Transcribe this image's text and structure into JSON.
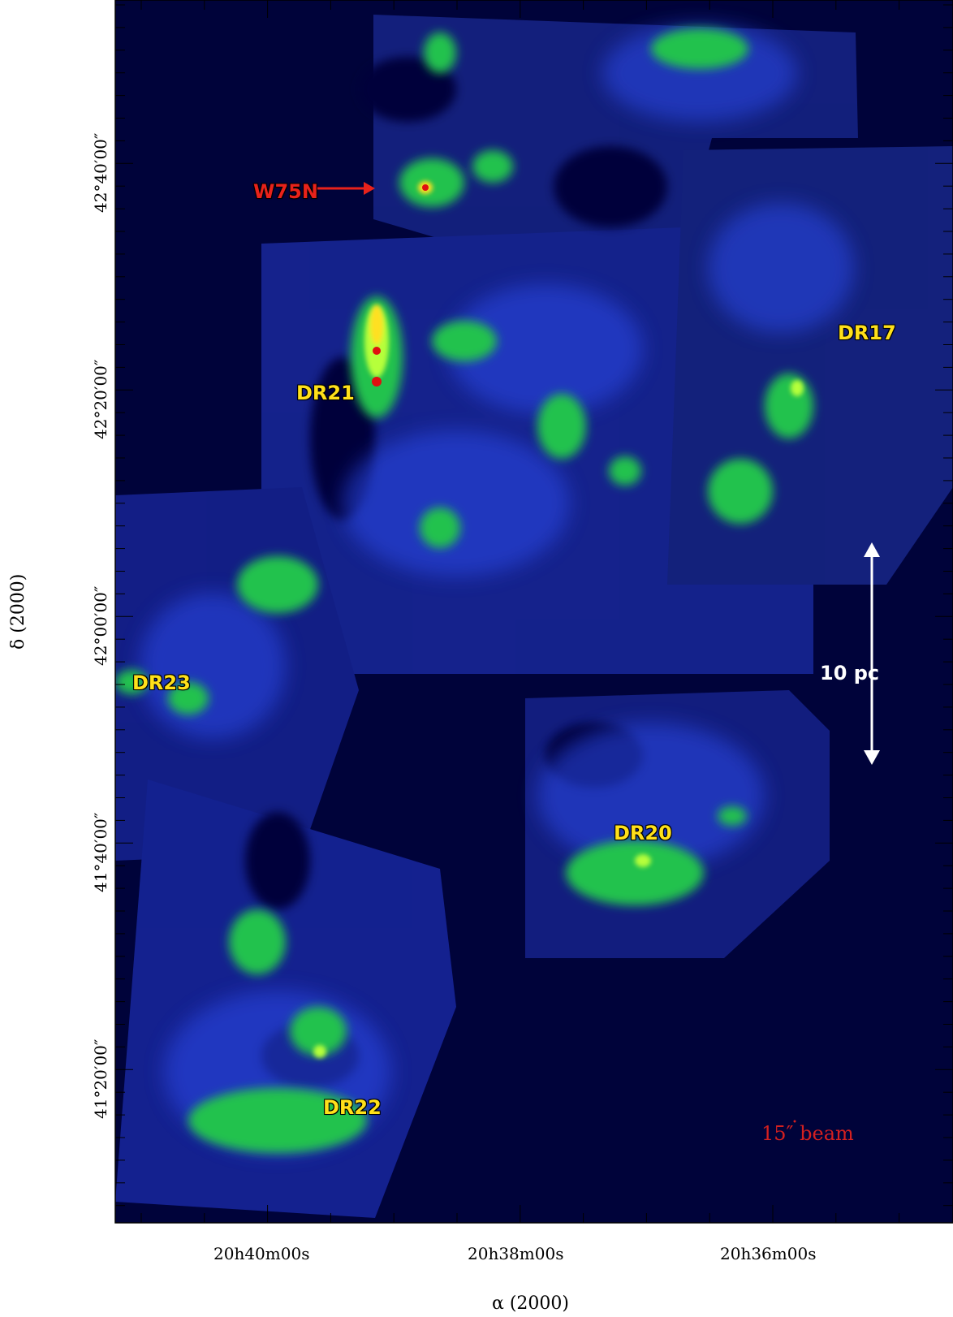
{
  "axes": {
    "x_title": "α (2000)",
    "y_title": "δ (2000)",
    "x_ticks": [
      "20h40m00s",
      "20h38m00s",
      "20h36m00s"
    ],
    "y_ticks": [
      "42°40′00″",
      "42°20′00″",
      "42°00′00″",
      "41°40′00″",
      "41°20′00″"
    ]
  },
  "sources": {
    "w75n": "W75N",
    "dr21": "DR21",
    "dr17": "DR17",
    "dr23": "DR23",
    "dr20": "DR20",
    "dr22": "DR22"
  },
  "scale_bar": {
    "label": "10 pc"
  },
  "beam": {
    "label": "15″ beam"
  },
  "colors": {
    "background": "#00033a",
    "emission_low": "#1b3cd6",
    "emission_mid": "#2ccf5a",
    "emission_high": "#ffe020",
    "peak": "#e01010",
    "label_yellow": "#ffe01a",
    "label_red": "#e8221b"
  }
}
